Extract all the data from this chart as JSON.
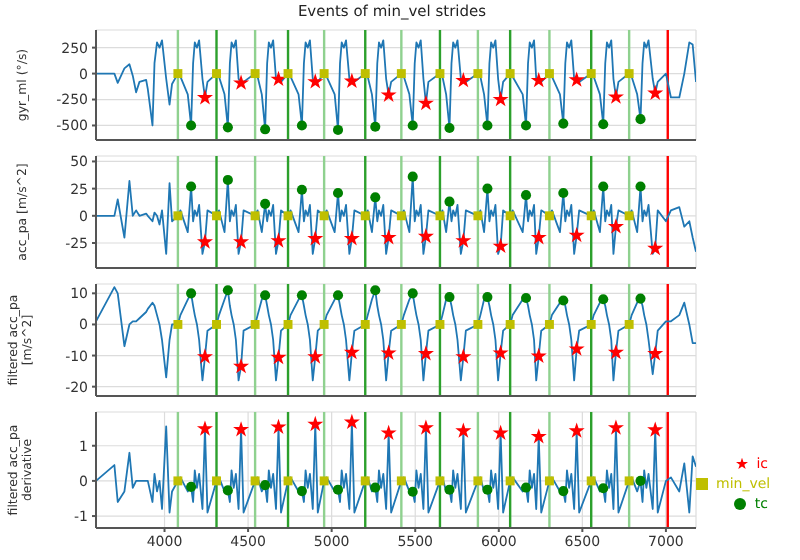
{
  "chart_data": [
    {
      "type": "line",
      "title": "Events of min_vel strides",
      "ylabel": "gyr_ml (°/s)",
      "xlim": [
        3590,
        7180
      ],
      "xticks": [
        4000,
        4500,
        5000,
        5500,
        6000,
        6500,
        7000
      ],
      "ylim": [
        -640,
        420
      ],
      "yticks": [
        -500,
        -250,
        0,
        250
      ],
      "grid": true,
      "legend": false,
      "tick_labels": "y",
      "x": [
        3590,
        3700,
        3720,
        3760,
        3790,
        3810,
        3830,
        3850,
        3890,
        3900,
        3928,
        3940,
        3955,
        3970,
        3985,
        4010,
        4030,
        4045,
        4080,
        4095,
        4139,
        4159,
        4171,
        4181,
        4194,
        4207,
        4227,
        4242,
        4257,
        4311,
        4326,
        4359,
        4379,
        4391,
        4401,
        4414,
        4427,
        4443,
        4458,
        4473,
        4542,
        4557,
        4582,
        4602,
        4614,
        4624,
        4637,
        4650,
        4667,
        4682,
        4697,
        4739,
        4754,
        4802,
        4822,
        4834,
        4844,
        4857,
        4870,
        4887,
        4902,
        4917,
        4955,
        4970,
        5018,
        5038,
        5050,
        5060,
        5073,
        5086,
        5106,
        5121,
        5136,
        5201,
        5216,
        5241,
        5261,
        5273,
        5283,
        5296,
        5309,
        5326,
        5341,
        5356,
        5417,
        5432,
        5465,
        5485,
        5497,
        5507,
        5520,
        5533,
        5549,
        5564,
        5579,
        5648,
        5663,
        5685,
        5705,
        5717,
        5727,
        5740,
        5753,
        5773,
        5788,
        5803,
        5875,
        5890,
        5912,
        5932,
        5944,
        5954,
        5967,
        5980,
        5996,
        6011,
        6026,
        6068,
        6083,
        6143,
        6163,
        6175,
        6185,
        6198,
        6211,
        6224,
        6239,
        6254,
        6303,
        6318,
        6366,
        6386,
        6398,
        6408,
        6421,
        6434,
        6451,
        6466,
        6481,
        6553,
        6568,
        6605,
        6625,
        6637,
        6647,
        6660,
        6673,
        6686,
        6701,
        6716,
        6780,
        6795,
        6828,
        6848,
        6860,
        6870,
        6883,
        6896,
        6921,
        6936,
        6951,
        7000,
        7030,
        7080,
        7110,
        7140,
        7160,
        7180
      ],
      "series": [
        {
          "color": "#1f77b4",
          "marker": "none",
          "line_style": "solid",
          "values": [
            0,
            0,
            -90,
            50,
            90,
            -20,
            -180,
            -80,
            -60,
            -150,
            -500,
            100,
            300,
            250,
            320,
            -50,
            -300,
            -100,
            0,
            -30,
            -200,
            -500,
            100,
            300,
            250,
            320,
            -50,
            -232,
            -80,
            0,
            -30,
            -200,
            -518,
            100,
            300,
            250,
            320,
            -50,
            -91,
            -80,
            0,
            -30,
            -200,
            -537,
            100,
            300,
            250,
            320,
            -50,
            -55,
            -80,
            0,
            -30,
            -200,
            -500,
            100,
            300,
            250,
            320,
            -50,
            -79,
            -80,
            0,
            -30,
            -200,
            -543,
            100,
            300,
            250,
            320,
            -50,
            -73,
            -80,
            0,
            -30,
            -200,
            -512,
            100,
            300,
            250,
            320,
            -50,
            -207,
            -80,
            0,
            -30,
            -200,
            -500,
            100,
            300,
            250,
            320,
            -50,
            -287,
            -80,
            0,
            -30,
            -200,
            -524,
            100,
            300,
            250,
            320,
            -50,
            -67,
            -80,
            0,
            -30,
            -200,
            -500,
            100,
            300,
            250,
            320,
            -50,
            -250,
            -80,
            0,
            -30,
            -200,
            -500,
            100,
            300,
            250,
            320,
            -50,
            -67,
            -80,
            0,
            -30,
            -200,
            -482,
            100,
            300,
            250,
            320,
            -50,
            -61,
            -80,
            0,
            -30,
            -200,
            -488,
            100,
            300,
            250,
            320,
            -50,
            -226,
            -80,
            0,
            -30,
            -200,
            -439,
            100,
            300,
            250,
            320,
            -50,
            -189,
            -80,
            0,
            -230,
            -230,
            0,
            300,
            280,
            -80
          ]
        },
        {
          "type": "scatter",
          "color": "#ff0000",
          "marker": "star",
          "x": [
            4242,
            4458,
            4682,
            4902,
            5121,
            5341,
            5564,
            5788,
            6011,
            6239,
            6466,
            6701,
            6936
          ],
          "values": [
            -232,
            -91,
            -55,
            -79,
            -73,
            -207,
            -287,
            -67,
            -250,
            -67,
            -61,
            -226,
            -189
          ]
        },
        {
          "type": "scatter",
          "color": "#008000",
          "marker": "circle",
          "x": [
            4159,
            4379,
            4602,
            4822,
            5038,
            5261,
            5485,
            5705,
            5932,
            6163,
            6386,
            6625,
            6848
          ],
          "values": [
            -500,
            -518,
            -537,
            -500,
            -543,
            -512,
            -500,
            -524,
            -500,
            -500,
            -482,
            -488,
            -439
          ]
        },
        {
          "type": "scatter",
          "color": "#bfbf00",
          "marker": "square",
          "x": [
            4080,
            4311,
            4542,
            4739,
            4955,
            5201,
            5417,
            5648,
            5875,
            6068,
            6303,
            6553,
            6780
          ],
          "values": [
            0,
            0,
            0,
            0,
            0,
            0,
            0,
            0,
            0,
            0,
            0,
            0,
            0
          ]
        }
      ],
      "ref_lines": [
        {
          "axis": "x",
          "value": 4080,
          "color": "#8fd18f"
        },
        {
          "axis": "x",
          "value": 4311,
          "color": "#2ca02c"
        },
        {
          "axis": "x",
          "value": 4542,
          "color": "#8fd18f"
        },
        {
          "axis": "x",
          "value": 4739,
          "color": "#2ca02c"
        },
        {
          "axis": "x",
          "value": 4955,
          "color": "#8fd18f"
        },
        {
          "axis": "x",
          "value": 5201,
          "color": "#2ca02c"
        },
        {
          "axis": "x",
          "value": 5417,
          "color": "#8fd18f"
        },
        {
          "axis": "x",
          "value": 5648,
          "color": "#2ca02c"
        },
        {
          "axis": "x",
          "value": 5875,
          "color": "#8fd18f"
        },
        {
          "axis": "x",
          "value": 6068,
          "color": "#2ca02c"
        },
        {
          "axis": "x",
          "value": 6303,
          "color": "#8fd18f"
        },
        {
          "axis": "x",
          "value": 6553,
          "color": "#2ca02c"
        },
        {
          "axis": "x",
          "value": 6780,
          "color": "#8fd18f"
        },
        {
          "axis": "x",
          "value": 7011,
          "color": "#ff0000"
        }
      ]
    },
    {
      "type": "line",
      "ylabel": "acc_pa [m/s^2]",
      "xlim": [
        3590,
        7180
      ],
      "xticks": [
        4000,
        4500,
        5000,
        5500,
        6000,
        6500,
        7000
      ],
      "ylim": [
        -48,
        55
      ],
      "yticks": [
        -25,
        0,
        25,
        50
      ],
      "grid": true,
      "legend": false,
      "tick_labels": "y",
      "x": [
        3590,
        3700,
        3720,
        3760,
        3790,
        3810,
        3830,
        3850,
        3890,
        3900,
        3928,
        3940,
        3955,
        3970,
        3985,
        4010,
        4030,
        4045,
        4080,
        4095,
        4139,
        4159,
        4171,
        4181,
        4194,
        4207,
        4227,
        4242,
        4257,
        4311,
        4326,
        4359,
        4379,
        4391,
        4401,
        4414,
        4427,
        4443,
        4458,
        4473,
        4542,
        4557,
        4582,
        4602,
        4614,
        4624,
        4637,
        4650,
        4667,
        4682,
        4697,
        4739,
        4754,
        4802,
        4822,
        4834,
        4844,
        4857,
        4870,
        4887,
        4902,
        4917,
        4955,
        4970,
        5018,
        5038,
        5050,
        5060,
        5073,
        5086,
        5106,
        5121,
        5136,
        5201,
        5216,
        5241,
        5261,
        5273,
        5283,
        5296,
        5309,
        5326,
        5341,
        5356,
        5417,
        5432,
        5465,
        5485,
        5497,
        5507,
        5520,
        5533,
        5549,
        5564,
        5579,
        5648,
        5663,
        5685,
        5705,
        5717,
        5727,
        5740,
        5753,
        5773,
        5788,
        5803,
        5875,
        5890,
        5912,
        5932,
        5944,
        5954,
        5967,
        5980,
        5996,
        6011,
        6026,
        6068,
        6083,
        6143,
        6163,
        6175,
        6185,
        6198,
        6211,
        6224,
        6239,
        6254,
        6303,
        6318,
        6366,
        6386,
        6398,
        6408,
        6421,
        6434,
        6451,
        6466,
        6481,
        6553,
        6568,
        6605,
        6625,
        6637,
        6647,
        6660,
        6673,
        6686,
        6701,
        6716,
        6780,
        6795,
        6828,
        6848,
        6860,
        6870,
        6883,
        6896,
        6921,
        6936,
        6951,
        7000,
        7030,
        7080,
        7110,
        7140,
        7160,
        7180
      ],
      "series": [
        {
          "color": "#1f77b4",
          "marker": "none",
          "line_style": "solid",
          "values": [
            0,
            0,
            15,
            -20,
            32,
            0,
            5,
            0,
            2,
            0,
            -5,
            3,
            0,
            -8,
            5,
            -35,
            30,
            -5,
            0,
            5,
            -15,
            27,
            -5,
            5,
            0,
            10,
            -35,
            -24,
            5,
            0,
            5,
            -15,
            33,
            -5,
            5,
            0,
            10,
            -35,
            -24,
            5,
            0,
            5,
            -15,
            11,
            -5,
            5,
            0,
            10,
            -35,
            -23,
            5,
            0,
            5,
            -15,
            24,
            -5,
            5,
            0,
            10,
            -35,
            -21,
            5,
            0,
            5,
            -15,
            21,
            -5,
            5,
            0,
            10,
            -35,
            -21,
            5,
            0,
            5,
            -15,
            17,
            -5,
            5,
            0,
            10,
            -35,
            -20,
            5,
            0,
            5,
            -15,
            36,
            -5,
            5,
            0,
            10,
            -35,
            -19,
            5,
            0,
            5,
            -15,
            13,
            -5,
            5,
            0,
            10,
            -35,
            -23,
            5,
            0,
            5,
            -15,
            25,
            -5,
            5,
            0,
            10,
            -35,
            -28,
            5,
            0,
            5,
            -15,
            19,
            -5,
            5,
            0,
            10,
            -35,
            -20,
            5,
            0,
            5,
            -15,
            21,
            -5,
            5,
            0,
            10,
            -35,
            -18,
            5,
            0,
            5,
            -15,
            27,
            -5,
            5,
            0,
            10,
            -35,
            -10,
            5,
            0,
            5,
            -15,
            27,
            -5,
            5,
            0,
            10,
            -35,
            -30,
            5,
            -5,
            5,
            8,
            -10,
            -5,
            -20,
            -33
          ]
        },
        {
          "type": "scatter",
          "color": "#ff0000",
          "marker": "star",
          "x": [
            4242,
            4458,
            4682,
            4902,
            5121,
            5341,
            5564,
            5788,
            6011,
            6239,
            6466,
            6701,
            6936
          ],
          "values": [
            -24,
            -24,
            -23,
            -21,
            -21,
            -20,
            -19,
            -23,
            -28,
            -20,
            -18,
            -10,
            -30
          ]
        },
        {
          "type": "scatter",
          "color": "#008000",
          "marker": "circle",
          "x": [
            4159,
            4379,
            4602,
            4822,
            5038,
            5261,
            5485,
            5705,
            5932,
            6163,
            6386,
            6625,
            6848
          ],
          "values": [
            27,
            33,
            11,
            24,
            21,
            17,
            36,
            13,
            25,
            19,
            21,
            27,
            27
          ]
        },
        {
          "type": "scatter",
          "color": "#bfbf00",
          "marker": "square",
          "x": [
            4080,
            4311,
            4542,
            4739,
            4955,
            5201,
            5417,
            5648,
            5875,
            6068,
            6303,
            6553,
            6780
          ],
          "values": [
            0,
            0,
            0,
            0,
            0,
            0,
            0,
            0,
            0,
            0,
            0,
            0,
            0
          ]
        }
      ],
      "ref_lines": [
        {
          "axis": "x",
          "value": 4080,
          "color": "#8fd18f"
        },
        {
          "axis": "x",
          "value": 4311,
          "color": "#2ca02c"
        },
        {
          "axis": "x",
          "value": 4542,
          "color": "#8fd18f"
        },
        {
          "axis": "x",
          "value": 4739,
          "color": "#2ca02c"
        },
        {
          "axis": "x",
          "value": 4955,
          "color": "#8fd18f"
        },
        {
          "axis": "x",
          "value": 5201,
          "color": "#2ca02c"
        },
        {
          "axis": "x",
          "value": 5417,
          "color": "#8fd18f"
        },
        {
          "axis": "x",
          "value": 5648,
          "color": "#2ca02c"
        },
        {
          "axis": "x",
          "value": 5875,
          "color": "#8fd18f"
        },
        {
          "axis": "x",
          "value": 6068,
          "color": "#2ca02c"
        },
        {
          "axis": "x",
          "value": 6303,
          "color": "#8fd18f"
        },
        {
          "axis": "x",
          "value": 6553,
          "color": "#2ca02c"
        },
        {
          "axis": "x",
          "value": 6780,
          "color": "#8fd18f"
        },
        {
          "axis": "x",
          "value": 7011,
          "color": "#ff0000"
        }
      ]
    },
    {
      "type": "line",
      "ylabel": "filtered acc_pa [m/s^2]",
      "xlim": [
        3590,
        7180
      ],
      "xticks": [
        4000,
        4500,
        5000,
        5500,
        6000,
        6500,
        7000
      ],
      "ylim": [
        -23,
        13
      ],
      "yticks": [
        -20,
        -10,
        0,
        10
      ],
      "grid": true,
      "legend": false,
      "tick_labels": "y",
      "x": [
        3590,
        3700,
        3720,
        3760,
        3790,
        3810,
        3830,
        3850,
        3890,
        3900,
        3928,
        3940,
        3955,
        3970,
        3985,
        4010,
        4030,
        4045,
        4080,
        4095,
        4139,
        4159,
        4171,
        4181,
        4194,
        4207,
        4227,
        4242,
        4257,
        4311,
        4326,
        4359,
        4379,
        4391,
        4401,
        4414,
        4427,
        4443,
        4458,
        4473,
        4542,
        4557,
        4582,
        4602,
        4614,
        4624,
        4637,
        4650,
        4667,
        4682,
        4697,
        4739,
        4754,
        4802,
        4822,
        4834,
        4844,
        4857,
        4870,
        4887,
        4902,
        4917,
        4955,
        4970,
        5018,
        5038,
        5050,
        5060,
        5073,
        5086,
        5106,
        5121,
        5136,
        5201,
        5216,
        5241,
        5261,
        5273,
        5283,
        5296,
        5309,
        5326,
        5341,
        5356,
        5417,
        5432,
        5465,
        5485,
        5497,
        5507,
        5520,
        5533,
        5549,
        5564,
        5579,
        5648,
        5663,
        5685,
        5705,
        5717,
        5727,
        5740,
        5753,
        5773,
        5788,
        5803,
        5875,
        5890,
        5912,
        5932,
        5944,
        5954,
        5967,
        5980,
        5996,
        6011,
        6026,
        6068,
        6083,
        6143,
        6163,
        6175,
        6185,
        6198,
        6211,
        6224,
        6239,
        6254,
        6303,
        6318,
        6366,
        6386,
        6398,
        6408,
        6421,
        6434,
        6451,
        6466,
        6481,
        6553,
        6568,
        6605,
        6625,
        6637,
        6647,
        6660,
        6673,
        6686,
        6701,
        6716,
        6780,
        6795,
        6828,
        6848,
        6860,
        6870,
        6883,
        6896,
        6921,
        6936,
        6951,
        7000,
        7030,
        7080,
        7110,
        7140,
        7160,
        7180
      ],
      "series": [
        {
          "color": "#1f77b4",
          "marker": "none",
          "line_style": "solid",
          "values": [
            1,
            12,
            10,
            -7,
            0,
            1,
            1,
            2,
            4,
            5,
            7,
            6,
            3,
            0,
            -5,
            -17,
            -5,
            0,
            0,
            3,
            8,
            10,
            6,
            3,
            0,
            -5,
            -18,
            -10.4,
            -2,
            0,
            3,
            8,
            11,
            6,
            3,
            0,
            -5,
            -18,
            -13.5,
            -2,
            0,
            3,
            8,
            9.4,
            6,
            3,
            0,
            -5,
            -18,
            -10.6,
            -2,
            0,
            3,
            8,
            9.4,
            6,
            3,
            0,
            -5,
            -18,
            -10.4,
            -2,
            0,
            3,
            8,
            9.4,
            6,
            3,
            0,
            -5,
            -18,
            -9,
            -2,
            0,
            3,
            8,
            11,
            6,
            3,
            0,
            -5,
            -18,
            -9.2,
            -2,
            0,
            3,
            8,
            10,
            6,
            3,
            0,
            -5,
            -18,
            -9.4,
            -2,
            0,
            3,
            8,
            8.8,
            6,
            3,
            0,
            -5,
            -18,
            -10.4,
            -2,
            0,
            3,
            8,
            8.8,
            6,
            3,
            0,
            -5,
            -18,
            -9.2,
            -2,
            0,
            3,
            8,
            8.5,
            6,
            3,
            0,
            -5,
            -18,
            -10.2,
            -2,
            0,
            3,
            7,
            7.7,
            6,
            3,
            0,
            -5,
            -18,
            -7.9,
            -2,
            0,
            3,
            7,
            8.1,
            6,
            3,
            0,
            -5,
            -18,
            -9,
            -2,
            0,
            3,
            7,
            8.3,
            6,
            3,
            0,
            -5,
            -16,
            -9.4,
            -2,
            1,
            1,
            3,
            7,
            0,
            -6,
            -6
          ]
        },
        {
          "type": "scatter",
          "color": "#ff0000",
          "marker": "star",
          "x": [
            4242,
            4458,
            4682,
            4902,
            5121,
            5341,
            5564,
            5788,
            6011,
            6239,
            6466,
            6701,
            6936
          ],
          "values": [
            -10.4,
            -13.5,
            -10.6,
            -10.4,
            -9,
            -9.2,
            -9.4,
            -10.4,
            -9.2,
            -10.2,
            -7.9,
            -9,
            -9.4
          ]
        },
        {
          "type": "scatter",
          "color": "#008000",
          "marker": "circle",
          "x": [
            4159,
            4379,
            4602,
            4822,
            5038,
            5261,
            5485,
            5705,
            5932,
            6163,
            6386,
            6625,
            6848
          ],
          "values": [
            10,
            11,
            9.4,
            9.4,
            9.4,
            11,
            10,
            8.8,
            8.8,
            8.5,
            7.7,
            8.1,
            8.3
          ]
        },
        {
          "type": "scatter",
          "color": "#bfbf00",
          "marker": "square",
          "x": [
            4080,
            4311,
            4542,
            4739,
            4955,
            5201,
            5417,
            5648,
            5875,
            6068,
            6303,
            6553,
            6780
          ],
          "values": [
            0,
            0,
            0,
            0,
            0,
            0,
            0,
            0,
            0,
            0,
            0,
            0,
            0
          ]
        }
      ],
      "ref_lines": [
        {
          "axis": "x",
          "value": 4080,
          "color": "#8fd18f"
        },
        {
          "axis": "x",
          "value": 4311,
          "color": "#2ca02c"
        },
        {
          "axis": "x",
          "value": 4542,
          "color": "#8fd18f"
        },
        {
          "axis": "x",
          "value": 4739,
          "color": "#2ca02c"
        },
        {
          "axis": "x",
          "value": 4955,
          "color": "#8fd18f"
        },
        {
          "axis": "x",
          "value": 5201,
          "color": "#2ca02c"
        },
        {
          "axis": "x",
          "value": 5417,
          "color": "#8fd18f"
        },
        {
          "axis": "x",
          "value": 5648,
          "color": "#2ca02c"
        },
        {
          "axis": "x",
          "value": 5875,
          "color": "#8fd18f"
        },
        {
          "axis": "x",
          "value": 6068,
          "color": "#2ca02c"
        },
        {
          "axis": "x",
          "value": 6303,
          "color": "#8fd18f"
        },
        {
          "axis": "x",
          "value": 6553,
          "color": "#2ca02c"
        },
        {
          "axis": "x",
          "value": 6780,
          "color": "#8fd18f"
        },
        {
          "axis": "x",
          "value": 7011,
          "color": "#ff0000"
        }
      ]
    },
    {
      "type": "line",
      "ylabel": "filtered acc_pa derivative",
      "xlim": [
        3590,
        7180
      ],
      "xticks": [
        4000,
        4500,
        5000,
        5500,
        6000,
        6500,
        7000
      ],
      "ylim": [
        -1.34,
        1.96
      ],
      "yticks": [
        -1,
        0,
        1
      ],
      "grid": true,
      "legend": "right",
      "x": [
        3590,
        3700,
        3720,
        3760,
        3790,
        3810,
        3830,
        3850,
        3890,
        3900,
        3928,
        3940,
        3955,
        3970,
        3985,
        4010,
        4030,
        4045,
        4080,
        4095,
        4139,
        4159,
        4171,
        4181,
        4194,
        4207,
        4227,
        4242,
        4257,
        4311,
        4326,
        4359,
        4379,
        4391,
        4401,
        4414,
        4427,
        4443,
        4458,
        4473,
        4542,
        4557,
        4582,
        4602,
        4614,
        4624,
        4637,
        4650,
        4667,
        4682,
        4697,
        4739,
        4754,
        4802,
        4822,
        4834,
        4844,
        4857,
        4870,
        4887,
        4902,
        4917,
        4955,
        4970,
        5018,
        5038,
        5050,
        5060,
        5073,
        5086,
        5106,
        5121,
        5136,
        5201,
        5216,
        5241,
        5261,
        5273,
        5283,
        5296,
        5309,
        5326,
        5341,
        5356,
        5417,
        5432,
        5465,
        5485,
        5497,
        5507,
        5520,
        5533,
        5549,
        5564,
        5579,
        5648,
        5663,
        5685,
        5705,
        5717,
        5727,
        5740,
        5753,
        5773,
        5788,
        5803,
        5875,
        5890,
        5912,
        5932,
        5944,
        5954,
        5967,
        5980,
        5996,
        6011,
        6026,
        6068,
        6083,
        6143,
        6163,
        6175,
        6185,
        6198,
        6211,
        6224,
        6239,
        6254,
        6303,
        6318,
        6366,
        6386,
        6398,
        6408,
        6421,
        6434,
        6451,
        6466,
        6481,
        6553,
        6568,
        6605,
        6625,
        6637,
        6647,
        6660,
        6673,
        6686,
        6701,
        6716,
        6780,
        6795,
        6828,
        6848,
        6860,
        6870,
        6883,
        6896,
        6921,
        6936,
        6951,
        7000,
        7030,
        7080,
        7110,
        7140,
        7160,
        7180
      ],
      "series": [
        {
          "color": "#1f77b4",
          "marker": "none",
          "line_style": "solid",
          "values": [
            0,
            0.45,
            -0.6,
            -0.3,
            0.8,
            -0.2,
            0,
            0,
            0,
            0,
            -0.6,
            0.2,
            -0.3,
            0,
            -0.8,
            1.55,
            -0.9,
            -0.3,
            0,
            0.1,
            -0.3,
            -0.17,
            -0.6,
            0.3,
            -0.2,
            0.2,
            -0.8,
            1.48,
            -0.9,
            0,
            0.1,
            -0.3,
            -0.27,
            -0.6,
            0.3,
            -0.2,
            0.2,
            -0.8,
            1.46,
            -0.9,
            0,
            0.1,
            -0.3,
            -0.12,
            -0.6,
            0.3,
            -0.2,
            0.2,
            -0.8,
            1.53,
            -0.9,
            0,
            0.1,
            -0.3,
            -0.29,
            -0.6,
            0.3,
            -0.2,
            0.2,
            -0.8,
            1.61,
            -0.9,
            0,
            0.1,
            -0.3,
            -0.25,
            -0.6,
            0.3,
            -0.2,
            0.2,
            -0.8,
            1.67,
            -0.9,
            0,
            0.1,
            -0.3,
            -0.19,
            -0.6,
            0.3,
            -0.2,
            0.2,
            -0.8,
            1.36,
            -0.9,
            0,
            0.1,
            -0.3,
            -0.31,
            -0.6,
            0.3,
            -0.2,
            0.2,
            -0.8,
            1.51,
            -0.9,
            0,
            0.1,
            -0.3,
            -0.25,
            -0.6,
            0.3,
            -0.2,
            0.2,
            -0.8,
            1.42,
            -0.9,
            0,
            0.1,
            -0.3,
            -0.25,
            -0.6,
            0.3,
            -0.2,
            0.2,
            -0.8,
            1.36,
            -0.9,
            0,
            0.1,
            -0.3,
            -0.19,
            -0.6,
            0.3,
            -0.2,
            0.2,
            -0.8,
            1.26,
            -0.9,
            0,
            0.1,
            -0.3,
            -0.29,
            -0.6,
            0.3,
            -0.2,
            0.2,
            -0.8,
            1.42,
            -0.9,
            0,
            0.1,
            -0.3,
            -0.21,
            -0.6,
            0.3,
            -0.2,
            0.2,
            -0.8,
            1.51,
            -0.9,
            0,
            0.1,
            -0.3,
            0,
            -0.6,
            0.3,
            -0.2,
            0.2,
            -0.8,
            1.45,
            -0.9,
            0,
            0.1,
            -0.3,
            0.5,
            -0.9,
            0.7,
            0.4
          ]
        },
        {
          "type": "scatter",
          "name": "ic",
          "color": "#ff0000",
          "marker": "star",
          "x": [
            4242,
            4458,
            4682,
            4902,
            5121,
            5341,
            5564,
            5788,
            6011,
            6239,
            6466,
            6701,
            6936
          ],
          "values": [
            1.48,
            1.46,
            1.53,
            1.61,
            1.67,
            1.36,
            1.51,
            1.42,
            1.36,
            1.26,
            1.42,
            1.51,
            1.45
          ]
        },
        {
          "type": "scatter",
          "name": "tc",
          "color": "#008000",
          "marker": "circle",
          "x": [
            4159,
            4379,
            4602,
            4822,
            5038,
            5261,
            5485,
            5705,
            5932,
            6163,
            6386,
            6625,
            6848
          ],
          "values": [
            -0.17,
            -0.27,
            -0.12,
            -0.29,
            -0.25,
            -0.19,
            -0.31,
            -0.25,
            -0.25,
            -0.19,
            -0.29,
            -0.21,
            0
          ]
        },
        {
          "type": "scatter",
          "name": "min_vel",
          "color": "#bfbf00",
          "marker": "square",
          "x": [
            4080,
            4311,
            4542,
            4739,
            4955,
            5201,
            5417,
            5648,
            5875,
            6068,
            6303,
            6553,
            6780
          ],
          "values": [
            0,
            0,
            0,
            0,
            0,
            0,
            0,
            0,
            0,
            0,
            0,
            0,
            0
          ]
        }
      ],
      "ref_lines": [
        {
          "axis": "x",
          "value": 4080,
          "color": "#8fd18f"
        },
        {
          "axis": "x",
          "value": 4311,
          "color": "#2ca02c"
        },
        {
          "axis": "x",
          "value": 4542,
          "color": "#8fd18f"
        },
        {
          "axis": "x",
          "value": 4739,
          "color": "#2ca02c"
        },
        {
          "axis": "x",
          "value": 4955,
          "color": "#8fd18f"
        },
        {
          "axis": "x",
          "value": 5201,
          "color": "#2ca02c"
        },
        {
          "axis": "x",
          "value": 5417,
          "color": "#8fd18f"
        },
        {
          "axis": "x",
          "value": 5648,
          "color": "#2ca02c"
        },
        {
          "axis": "x",
          "value": 5875,
          "color": "#8fd18f"
        },
        {
          "axis": "x",
          "value": 6068,
          "color": "#2ca02c"
        },
        {
          "axis": "x",
          "value": 6303,
          "color": "#8fd18f"
        },
        {
          "axis": "x",
          "value": 6553,
          "color": "#2ca02c"
        },
        {
          "axis": "x",
          "value": 6780,
          "color": "#8fd18f"
        },
        {
          "axis": "x",
          "value": 7011,
          "color": "#ff0000"
        }
      ]
    }
  ]
}
